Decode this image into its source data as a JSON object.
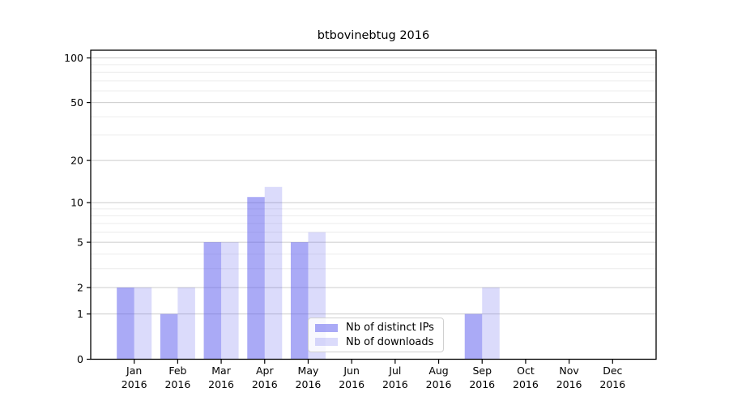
{
  "chart_data": {
    "type": "bar",
    "title": "btbovinebtug 2016",
    "categories": [
      "Jan",
      "Feb",
      "Mar",
      "Apr",
      "May",
      "Jun",
      "Jul",
      "Aug",
      "Sep",
      "Oct",
      "Nov",
      "Dec"
    ],
    "category_year": "2016",
    "series": [
      {
        "name": "Nb of distinct IPs",
        "color": "rgba(85,85,238,0.5)",
        "values": [
          2,
          1,
          5,
          11,
          5,
          0,
          0,
          0,
          1,
          0,
          0,
          0
        ]
      },
      {
        "name": "Nb of downloads",
        "color": "rgba(85,85,238,0.21)",
        "values": [
          2,
          2,
          5,
          13,
          6,
          0,
          0,
          0,
          2,
          0,
          0,
          0
        ]
      }
    ],
    "yscale": "log1p",
    "y_major_ticks": [
      0,
      1,
      2,
      5,
      10,
      20,
      50,
      100
    ],
    "y_minor_ticks": [
      3,
      4,
      6,
      7,
      8,
      9,
      30,
      40,
      60,
      70,
      80,
      90
    ],
    "ylim": [
      0,
      112
    ],
    "xlabel": "",
    "ylabel": "",
    "grid": "horizontal",
    "legend_position": "bottom-center"
  },
  "colors": {
    "bar_base": "#5555ee",
    "major_grid": "#cccccc",
    "minor_grid": "#ececec",
    "spine": "#000000",
    "legend_border": "#d0d0d0",
    "text": "#000000"
  }
}
